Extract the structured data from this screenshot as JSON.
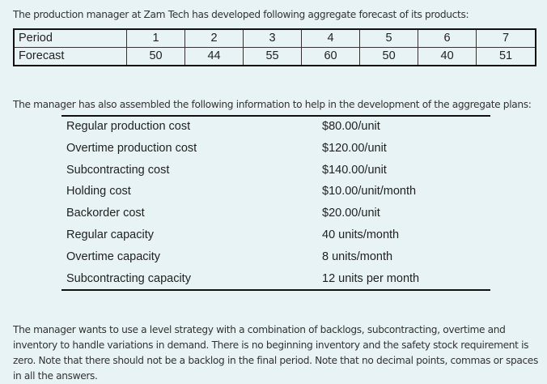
{
  "intro_text": "The production manager at Zam Tech has developed following aggregate forecast of its products:",
  "forecast_table": {
    "row_labels": [
      "Period",
      "Forecast"
    ],
    "periods": [
      "1",
      "2",
      "3",
      "4",
      "5",
      "6",
      "7"
    ],
    "forecast": [
      "50",
      "44",
      "55",
      "60",
      "50",
      "40",
      "51"
    ]
  },
  "info_intro_text": "The manager has also assembled the following information to help in the development of the aggregate plans:",
  "info_table": [
    {
      "label": "Regular production cost",
      "value": "$80.00/unit"
    },
    {
      "label": "Overtime production cost",
      "value": "$120.00/unit"
    },
    {
      "label": "Subcontracting cost",
      "value": "$140.00/unit"
    },
    {
      "label": "Holding cost",
      "value": "$10.00/unit/month"
    },
    {
      "label": "Backorder cost",
      "value": "$20.00/unit"
    },
    {
      "label": "Regular capacity",
      "value": "40 units/month"
    },
    {
      "label": "Overtime capacity",
      "value": "8 units/month"
    },
    {
      "label": "Subcontracting capacity",
      "value": "12 units per month"
    }
  ],
  "closing_text": "The manager wants to use a level strategy with a combination of backlogs, subcontracting, overtime and inventory to handle variations in demand. There is no beginning inventory and the safety stock requirement is zero. Note that there should not be a backlog in the final period. Note that no decimal points, commas or spaces in all the answers."
}
